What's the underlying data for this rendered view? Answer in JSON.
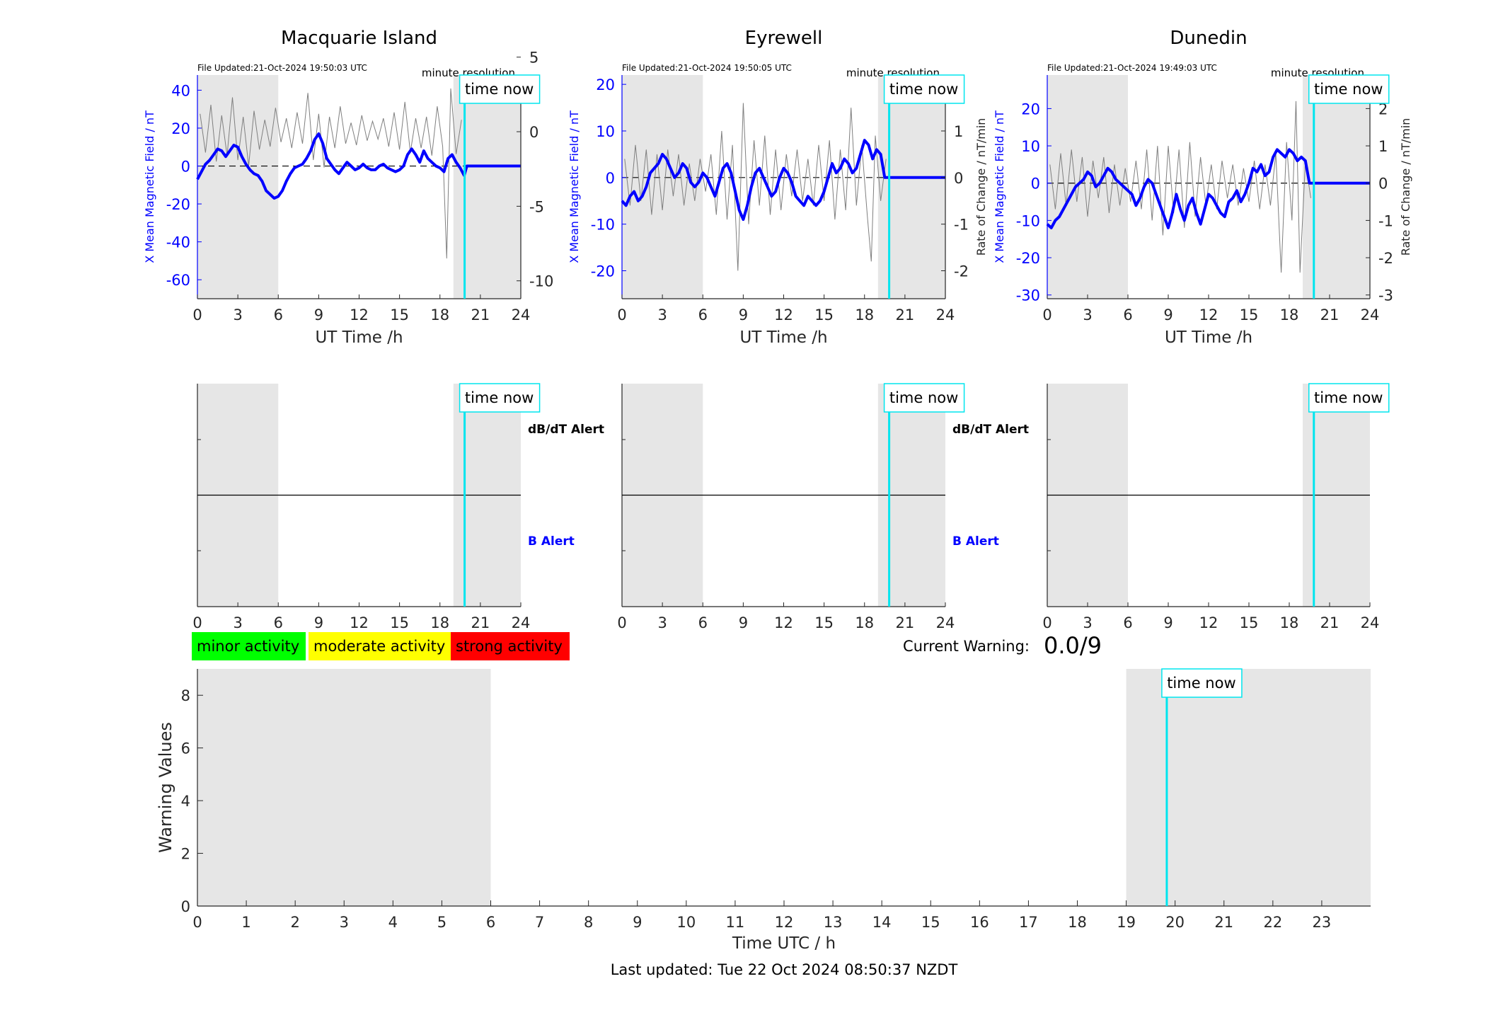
{
  "footer": {
    "last_updated": "Last updated: Tue 22 Oct 2024 08:50:37 NZDT"
  },
  "legend": {
    "items": [
      {
        "label": "minor activity",
        "color": "#00ff00"
      },
      {
        "label": "moderate activity",
        "color": "#ffff00"
      },
      {
        "label": "strong activity",
        "color": "#ff0000"
      }
    ]
  },
  "current_warning": {
    "label": "Current Warning:",
    "value": "0.0/9"
  },
  "colors": {
    "field": "#0000ff",
    "rate": "#7f7f7f",
    "time_now": "#00e5ee",
    "shade": "#e6e6e6"
  },
  "chart_data": [
    {
      "type": "line",
      "station": "Macquarie Island",
      "title": "Macquarie Island",
      "file_updated": "File Updated:21-Oct-2024 19:50:03 UTC",
      "resolution_note": "minute resolution",
      "time_now_label": "time now",
      "time_now": 19.83,
      "xlabel": "UT Time /h",
      "ylabel": "X Mean Magnetic Field / nT",
      "ylabel_right": "",
      "xlim": [
        0,
        24
      ],
      "xticks": [
        0,
        3,
        6,
        9,
        12,
        15,
        18,
        21,
        24
      ],
      "ylim": [
        -70,
        48
      ],
      "yticks": [
        -60,
        -40,
        -20,
        0,
        20,
        40
      ],
      "ylim_right": [
        -11.2,
        3.8
      ],
      "yticks_right": [
        -10,
        -5,
        0,
        5
      ],
      "shaded_ranges": [
        [
          0,
          6
        ],
        [
          19,
          24
        ]
      ],
      "series": [
        {
          "name": "X Mean Magnetic Field",
          "x": [
            0,
            0.3,
            0.6,
            0.9,
            1.2,
            1.5,
            1.8,
            2.1,
            2.4,
            2.7,
            3.0,
            3.3,
            3.6,
            3.9,
            4.2,
            4.5,
            4.8,
            5.1,
            5.4,
            5.7,
            6.0,
            6.3,
            6.6,
            6.9,
            7.2,
            7.5,
            7.8,
            8.1,
            8.4,
            8.7,
            9.0,
            9.3,
            9.6,
            9.9,
            10.2,
            10.5,
            10.8,
            11.1,
            11.4,
            11.7,
            12.0,
            12.3,
            12.6,
            12.9,
            13.2,
            13.5,
            13.8,
            14.1,
            14.4,
            14.7,
            15.0,
            15.3,
            15.6,
            15.9,
            16.2,
            16.5,
            16.8,
            17.1,
            17.4,
            17.7,
            18.0,
            18.3,
            18.6,
            18.9,
            19.2,
            19.5,
            19.8,
            20.0,
            21,
            22,
            23,
            24
          ],
          "values": [
            -7,
            -3,
            1,
            3,
            6,
            9,
            8,
            5,
            8,
            11,
            10,
            5,
            1,
            -2,
            -4,
            -5,
            -8,
            -13,
            -15,
            -17,
            -16,
            -13,
            -8,
            -4,
            -1,
            0,
            1,
            4,
            8,
            14,
            17,
            12,
            4,
            1,
            -2,
            -4,
            -1,
            2,
            0,
            -2,
            -1,
            1,
            -1,
            -2,
            -2,
            0,
            1,
            -1,
            -2,
            -3,
            -2,
            0,
            6,
            9,
            6,
            2,
            8,
            4,
            2,
            0,
            -1,
            -3,
            4,
            6,
            2,
            -1,
            -5,
            0,
            0,
            0,
            0,
            0
          ]
        },
        {
          "name": "Rate of Change",
          "x": [
            0.2,
            0.6,
            1.0,
            1.4,
            1.8,
            2.2,
            2.6,
            3.0,
            3.4,
            3.8,
            4.2,
            4.6,
            5.0,
            5.4,
            5.8,
            6.2,
            6.6,
            7.0,
            7.4,
            7.8,
            8.2,
            8.6,
            9.0,
            9.4,
            9.8,
            10.2,
            10.6,
            11.0,
            11.4,
            11.8,
            12.2,
            12.6,
            13.0,
            13.4,
            13.8,
            14.2,
            14.6,
            15.0,
            15.4,
            15.8,
            16.2,
            16.6,
            17.0,
            17.4,
            17.8,
            18.2,
            18.5,
            18.8,
            19.2,
            19.6
          ],
          "values": [
            1.2,
            -1.4,
            1.8,
            -2.0,
            1.1,
            -1.6,
            2.3,
            -1.9,
            1.0,
            -2.3,
            1.4,
            -1.2,
            0.8,
            -1.0,
            1.6,
            -0.7,
            0.9,
            -1.1,
            1.3,
            -0.8,
            2.6,
            -1.9,
            1.2,
            -2.4,
            1.0,
            -1.1,
            1.7,
            -0.8,
            0.6,
            -0.9,
            1.1,
            -0.6,
            0.7,
            -0.5,
            0.9,
            -1.0,
            1.3,
            -1.2,
            2.0,
            -1.4,
            0.9,
            -1.1,
            1.0,
            -1.6,
            1.7,
            -1.0,
            -8.5,
            2.9,
            -1.5,
            0.8
          ]
        }
      ]
    },
    {
      "type": "line",
      "station": "Eyrewell",
      "title": "Eyrewell",
      "file_updated": "File Updated:21-Oct-2024 19:50:05 UTC",
      "resolution_note": "minute resolution",
      "time_now_label": "time now",
      "time_now": 19.83,
      "xlabel": "UT Time /h",
      "ylabel": "X Mean Magnetic Field / nT",
      "ylabel_right": "Rate of Change / nT/min",
      "xlim": [
        0,
        24
      ],
      "xticks": [
        0,
        3,
        6,
        9,
        12,
        15,
        18,
        21,
        24
      ],
      "ylim": [
        -26,
        22
      ],
      "yticks": [
        -20,
        -10,
        0,
        10,
        20
      ],
      "ylim_right": [
        -2.6,
        2.2
      ],
      "yticks_right": [
        -2,
        -1,
        0,
        1,
        2
      ],
      "shaded_ranges": [
        [
          0,
          6
        ],
        [
          19,
          24
        ]
      ],
      "series": [
        {
          "name": "X Mean Magnetic Field",
          "x": [
            0,
            0.3,
            0.6,
            0.9,
            1.2,
            1.5,
            1.8,
            2.1,
            2.4,
            2.7,
            3.0,
            3.3,
            3.6,
            3.9,
            4.2,
            4.5,
            4.8,
            5.1,
            5.4,
            5.7,
            6.0,
            6.3,
            6.6,
            6.9,
            7.2,
            7.5,
            7.8,
            8.1,
            8.4,
            8.7,
            9.0,
            9.3,
            9.6,
            9.9,
            10.2,
            10.5,
            10.8,
            11.1,
            11.4,
            11.7,
            12.0,
            12.3,
            12.6,
            12.9,
            13.2,
            13.5,
            13.8,
            14.1,
            14.4,
            14.7,
            15.0,
            15.3,
            15.6,
            15.9,
            16.2,
            16.5,
            16.8,
            17.1,
            17.4,
            17.7,
            18.0,
            18.3,
            18.6,
            18.9,
            19.2,
            19.5,
            19.8,
            20.0,
            21,
            22,
            23,
            24
          ],
          "values": [
            -5,
            -6,
            -4,
            -3,
            -5,
            -4,
            -2,
            1,
            2,
            3,
            5,
            4,
            2,
            0,
            1,
            3,
            2,
            -1,
            -2,
            -1,
            1,
            0,
            -2,
            -4,
            -1,
            2,
            3,
            1,
            -3,
            -7,
            -9,
            -6,
            -2,
            1,
            2,
            0,
            -2,
            -4,
            -3,
            0,
            2,
            1,
            -1,
            -4,
            -5,
            -6,
            -4,
            -5,
            -6,
            -5,
            -3,
            0,
            3,
            1,
            2,
            4,
            3,
            1,
            2,
            5,
            8,
            7,
            4,
            6,
            5,
            0,
            0,
            0,
            0,
            0,
            0,
            0
          ]
        },
        {
          "name": "Rate of Change",
          "x": [
            0.2,
            0.6,
            1.0,
            1.4,
            1.8,
            2.2,
            2.6,
            3.0,
            3.4,
            3.8,
            4.2,
            4.6,
            5.0,
            5.4,
            5.8,
            6.2,
            6.6,
            7.0,
            7.4,
            7.8,
            8.2,
            8.6,
            9.0,
            9.4,
            9.8,
            10.2,
            10.6,
            11.0,
            11.4,
            11.8,
            12.2,
            12.6,
            13.0,
            13.4,
            13.8,
            14.2,
            14.6,
            15.0,
            15.4,
            15.8,
            16.2,
            16.6,
            17.0,
            17.4,
            17.8,
            18.2,
            18.5,
            18.8,
            19.2,
            19.6
          ],
          "values": [
            0.4,
            -0.6,
            0.7,
            -0.5,
            0.6,
            -0.8,
            0.5,
            -0.7,
            0.6,
            -0.4,
            0.5,
            -0.6,
            0.3,
            -0.5,
            0.4,
            -0.3,
            0.5,
            -0.8,
            1.0,
            -0.9,
            0.7,
            -2.0,
            1.6,
            -1.0,
            0.8,
            -0.6,
            0.9,
            -0.8,
            0.6,
            -0.7,
            0.5,
            -0.4,
            0.6,
            -0.5,
            0.4,
            -0.6,
            0.7,
            -0.5,
            0.8,
            -0.9,
            0.6,
            -0.7,
            1.5,
            -0.6,
            0.7,
            -0.8,
            -1.8,
            0.9,
            -0.5,
            0.4
          ]
        }
      ]
    },
    {
      "type": "line",
      "station": "Dunedin",
      "title": "Dunedin",
      "file_updated": "File Updated:21-Oct-2024 19:49:03 UTC",
      "resolution_note": "minute resolution",
      "time_now_label": "time now",
      "time_now": 19.83,
      "xlabel": "UT Time /h",
      "ylabel": "X Mean Magnetic Field / nT",
      "ylabel_right": "Rate of Change / nT/min",
      "xlim": [
        0,
        24
      ],
      "xticks": [
        0,
        3,
        6,
        9,
        12,
        15,
        18,
        21,
        24
      ],
      "ylim": [
        -31,
        29
      ],
      "yticks": [
        -30,
        -20,
        -10,
        0,
        10,
        20
      ],
      "ylim_right": [
        -3.1,
        2.9
      ],
      "yticks_right": [
        -3,
        -2,
        -1,
        0,
        1,
        2
      ],
      "shaded_ranges": [
        [
          0,
          6
        ],
        [
          19,
          24
        ]
      ],
      "series": [
        {
          "name": "X Mean Magnetic Field",
          "x": [
            0,
            0.3,
            0.6,
            0.9,
            1.2,
            1.5,
            1.8,
            2.1,
            2.4,
            2.7,
            3.0,
            3.3,
            3.6,
            3.9,
            4.2,
            4.5,
            4.8,
            5.1,
            5.4,
            5.7,
            6.0,
            6.3,
            6.6,
            6.9,
            7.2,
            7.5,
            7.8,
            8.1,
            8.4,
            8.7,
            9.0,
            9.3,
            9.6,
            9.9,
            10.2,
            10.5,
            10.8,
            11.1,
            11.4,
            11.7,
            12.0,
            12.3,
            12.6,
            12.9,
            13.2,
            13.5,
            13.8,
            14.1,
            14.4,
            14.7,
            15.0,
            15.3,
            15.6,
            15.9,
            16.2,
            16.5,
            16.8,
            17.1,
            17.4,
            17.7,
            18.0,
            18.3,
            18.6,
            18.9,
            19.2,
            19.5,
            19.8,
            20.0,
            21,
            22,
            23,
            24
          ],
          "values": [
            -11,
            -12,
            -10,
            -9,
            -7,
            -5,
            -3,
            -1,
            0,
            1,
            3,
            2,
            -1,
            0,
            2,
            4,
            3,
            1,
            0,
            -1,
            -2,
            -3,
            -6,
            -4,
            -1,
            1,
            0,
            -3,
            -6,
            -9,
            -12,
            -8,
            -3,
            -7,
            -10,
            -6,
            -4,
            -8,
            -11,
            -7,
            -3,
            -4,
            -6,
            -8,
            -9,
            -5,
            -4,
            -2,
            -5,
            -3,
            0,
            4,
            3,
            5,
            2,
            3,
            7,
            9,
            8,
            7,
            9,
            8,
            6,
            7,
            6,
            0,
            0,
            0,
            0,
            0,
            0,
            0
          ]
        },
        {
          "name": "Rate of Change",
          "x": [
            0.2,
            0.6,
            1.0,
            1.4,
            1.8,
            2.2,
            2.6,
            3.0,
            3.4,
            3.8,
            4.2,
            4.6,
            5.0,
            5.4,
            5.8,
            6.2,
            6.6,
            7.0,
            7.4,
            7.8,
            8.2,
            8.6,
            9.0,
            9.4,
            9.8,
            10.2,
            10.6,
            11.0,
            11.4,
            11.8,
            12.2,
            12.6,
            13.0,
            13.4,
            13.8,
            14.2,
            14.6,
            15.0,
            15.4,
            15.8,
            16.2,
            16.6,
            17.0,
            17.4,
            17.8,
            18.2,
            18.5,
            18.8,
            19.2,
            19.6
          ],
          "values": [
            0.5,
            -0.7,
            0.8,
            -0.6,
            0.9,
            -0.5,
            0.7,
            -0.9,
            0.6,
            -0.4,
            0.7,
            -0.8,
            0.5,
            -0.6,
            0.4,
            -0.5,
            0.6,
            -0.7,
            0.9,
            -1.0,
            1.0,
            -1.4,
            1.0,
            -0.8,
            0.9,
            -1.2,
            1.1,
            -0.9,
            0.7,
            -0.6,
            0.5,
            -0.7,
            0.6,
            -0.4,
            0.5,
            -0.6,
            0.4,
            -0.5,
            0.6,
            -0.7,
            0.5,
            -0.6,
            0.8,
            -2.4,
            1.1,
            -1.0,
            2.2,
            -2.4,
            0.6,
            -0.4
          ]
        }
      ]
    },
    {
      "type": "line",
      "station": "Macquarie Island",
      "panel": "alerts",
      "time_now_label": "time now",
      "time_now": 19.83,
      "upper_label": "dB/dT Alert",
      "lower_label": "B Alert",
      "xlim": [
        0,
        24
      ],
      "xticks": [
        0,
        3,
        6,
        9,
        12,
        15,
        18,
        21,
        24
      ],
      "shaded_ranges": [
        [
          0,
          6
        ],
        [
          19,
          24
        ]
      ]
    },
    {
      "type": "line",
      "station": "Eyrewell",
      "panel": "alerts",
      "time_now_label": "time now",
      "time_now": 19.83,
      "upper_label": "dB/dT Alert",
      "lower_label": "B Alert",
      "xlim": [
        0,
        24
      ],
      "xticks": [
        0,
        3,
        6,
        9,
        12,
        15,
        18,
        21,
        24
      ],
      "shaded_ranges": [
        [
          0,
          6
        ],
        [
          19,
          24
        ]
      ]
    },
    {
      "type": "line",
      "station": "Dunedin",
      "panel": "alerts",
      "time_now_label": "time now",
      "time_now": 19.83,
      "upper_label": "",
      "lower_label": "",
      "xlim": [
        0,
        24
      ],
      "xticks": [
        0,
        3,
        6,
        9,
        12,
        15,
        18,
        21,
        24
      ],
      "shaded_ranges": [
        [
          0,
          6
        ],
        [
          19,
          24
        ]
      ]
    },
    {
      "type": "line",
      "panel": "warning",
      "time_now_label": "time now",
      "time_now": 19.83,
      "xlabel": "Time UTC / h",
      "ylabel": "Warning Values",
      "xlim": [
        0,
        24
      ],
      "xticks": [
        0,
        1,
        2,
        3,
        4,
        5,
        6,
        7,
        8,
        9,
        10,
        11,
        12,
        13,
        14,
        15,
        16,
        17,
        18,
        19,
        20,
        21,
        22,
        23
      ],
      "ylim": [
        0,
        9
      ],
      "yticks": [
        0,
        2,
        4,
        6,
        8
      ],
      "shaded_ranges": [
        [
          0,
          6
        ],
        [
          19,
          24
        ]
      ],
      "series": []
    }
  ]
}
